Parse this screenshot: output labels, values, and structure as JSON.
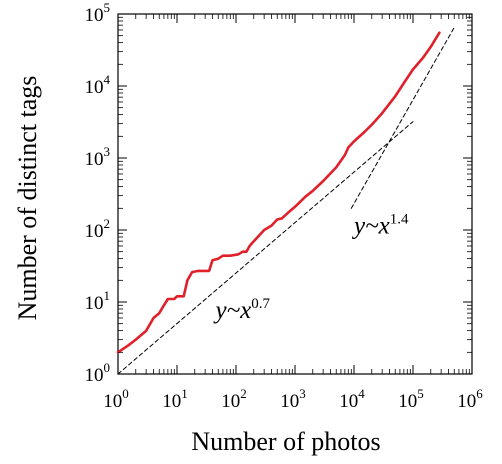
{
  "chart_data": {
    "type": "line",
    "xlabel": "Number of photos",
    "ylabel": "Number of distinct tags",
    "xscale": "log",
    "yscale": "log",
    "xlim": [
      1,
      1000000
    ],
    "ylim": [
      1,
      100000
    ],
    "x_ticks": [
      {
        "base": "10",
        "exp": "0",
        "value": 1
      },
      {
        "base": "10",
        "exp": "1",
        "value": 10
      },
      {
        "base": "10",
        "exp": "2",
        "value": 100
      },
      {
        "base": "10",
        "exp": "3",
        "value": 1000
      },
      {
        "base": "10",
        "exp": "4",
        "value": 10000
      },
      {
        "base": "10",
        "exp": "5",
        "value": 100000
      },
      {
        "base": "10",
        "exp": "6",
        "value": 1000000
      }
    ],
    "y_ticks": [
      {
        "base": "10",
        "exp": "0",
        "value": 1
      },
      {
        "base": "10",
        "exp": "1",
        "value": 10
      },
      {
        "base": "10",
        "exp": "2",
        "value": 100
      },
      {
        "base": "10",
        "exp": "3",
        "value": 1000
      },
      {
        "base": "10",
        "exp": "4",
        "value": 10000
      },
      {
        "base": "10",
        "exp": "5",
        "value": 100000
      }
    ],
    "grid": false,
    "series": [
      {
        "color": "#e0202a",
        "style": "solid",
        "points": [
          [
            1,
            2.0
          ],
          [
            1.5,
            2.5
          ],
          [
            2,
            3.0
          ],
          [
            3,
            4.0
          ],
          [
            4,
            6.0
          ],
          [
            5,
            7.0
          ],
          [
            6,
            9.0
          ],
          [
            7,
            11.0
          ],
          [
            9,
            11.0
          ],
          [
            10,
            12.0
          ],
          [
            13,
            12.0
          ],
          [
            15,
            20.0
          ],
          [
            18,
            26.0
          ],
          [
            23,
            27.0
          ],
          [
            35,
            27.0
          ],
          [
            40,
            38.0
          ],
          [
            50,
            40.0
          ],
          [
            60,
            44.0
          ],
          [
            80,
            44.0
          ],
          [
            110,
            46.0
          ],
          [
            130,
            50.0
          ],
          [
            150,
            50.0
          ],
          [
            170,
            60.0
          ],
          [
            200,
            70.0
          ],
          [
            300,
            100.0
          ],
          [
            400,
            115.0
          ],
          [
            500,
            140.0
          ],
          [
            600,
            145.0
          ],
          [
            800,
            180.0
          ],
          [
            1000,
            210.0
          ],
          [
            1500,
            290.0
          ],
          [
            2000,
            350.0
          ],
          [
            3000,
            480.0
          ],
          [
            5000,
            740.0
          ],
          [
            7000,
            1100.0
          ],
          [
            8000,
            1400.0
          ],
          [
            10000,
            1700.0
          ],
          [
            15000,
            2300.0
          ],
          [
            20000,
            2900.0
          ],
          [
            30000,
            4200.0
          ],
          [
            50000,
            7200.0
          ],
          [
            70000,
            11000.0
          ],
          [
            100000,
            17000.0
          ],
          [
            150000,
            25000.0
          ],
          [
            200000,
            35000.0
          ],
          [
            280000,
            55000.0
          ]
        ]
      },
      {
        "color": "#000000",
        "style": "dashed",
        "points": [
          [
            1,
            1.0
          ],
          [
            100000,
            3200.0
          ]
        ]
      },
      {
        "color": "#000000",
        "style": "dashed",
        "points": [
          [
            9000,
            200.0
          ],
          [
            500000,
            65000.0
          ]
        ]
      }
    ],
    "annotations": [
      {
        "base": "y~x",
        "exp": "0.7",
        "x": 45,
        "y": 6.0
      },
      {
        "base": "y~x",
        "exp": "1.4",
        "x": 10000,
        "y": 90.0
      }
    ]
  }
}
